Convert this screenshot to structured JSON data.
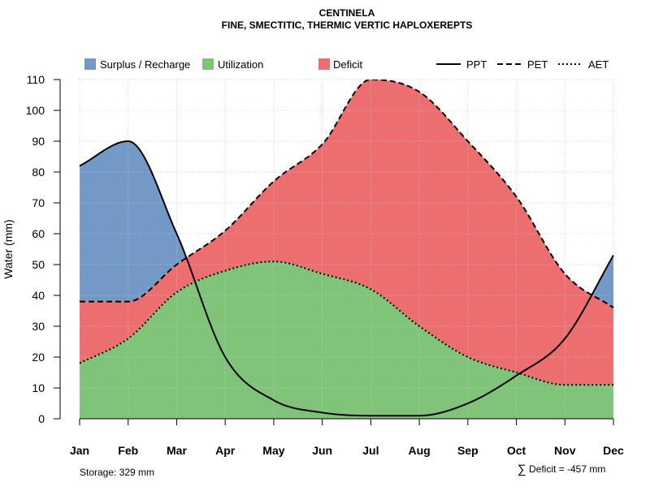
{
  "chart_data": {
    "type": "area",
    "title": "CENTINELA",
    "subtitle": "FINE, SMECTITIC, THERMIC VERTIC HAPLOXEREPTS",
    "ylabel": "Water (mm)",
    "xlabel": "",
    "ylim": [
      0,
      110
    ],
    "yticks": [
      0,
      10,
      20,
      30,
      40,
      50,
      60,
      70,
      80,
      90,
      100,
      110
    ],
    "categories": [
      "Jan",
      "Feb",
      "Mar",
      "Apr",
      "May",
      "Jun",
      "Jul",
      "Aug",
      "Sep",
      "Oct",
      "Nov",
      "Dec"
    ],
    "grid": true,
    "legend_position": "top",
    "series": [
      {
        "name": "PPT",
        "style": "solid",
        "values": [
          82,
          90,
          60,
          20,
          6,
          2,
          1,
          1,
          5,
          14,
          26,
          53
        ]
      },
      {
        "name": "PET",
        "style": "dashed",
        "values": [
          38,
          38,
          50,
          61,
          77,
          89,
          110,
          106,
          90,
          72,
          47,
          36
        ]
      },
      {
        "name": "AET",
        "style": "dotted",
        "values": [
          18,
          26,
          41,
          48,
          51,
          47,
          42,
          30,
          20,
          15,
          11,
          11
        ]
      }
    ],
    "fills": [
      {
        "name": "Surplus / Recharge",
        "color": "#7399c6"
      },
      {
        "name": "Utilization",
        "color": "#80c47a"
      },
      {
        "name": "Deficit",
        "color": "#ec6e6e"
      }
    ],
    "annotations": {
      "storage": "Storage: 329 mm",
      "deficit_symbol": "∑",
      "deficit": "Deficit = -457 mm"
    }
  }
}
